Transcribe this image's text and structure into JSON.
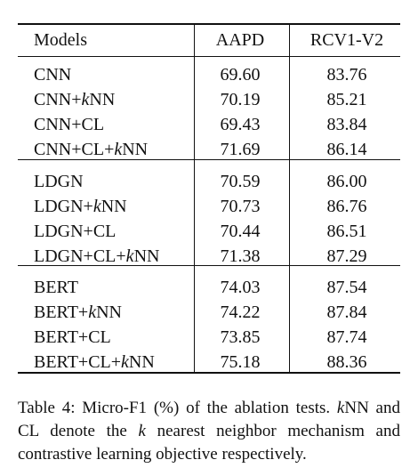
{
  "table": {
    "headers": [
      "Models",
      "AAPD",
      "RCV1-V2"
    ],
    "groups": [
      {
        "rows": [
          {
            "model": "CNN",
            "aapd": "69.60",
            "rcv": "83.76"
          },
          {
            "model": "CNN+kNN",
            "aapd": "70.19",
            "rcv": "85.21"
          },
          {
            "model": "CNN+CL",
            "aapd": "69.43",
            "rcv": "83.84"
          },
          {
            "model": "CNN+CL+kNN",
            "aapd": "71.69",
            "rcv": "86.14"
          }
        ]
      },
      {
        "rows": [
          {
            "model": "LDGN",
            "aapd": "70.59",
            "rcv": "86.00"
          },
          {
            "model": "LDGN+kNN",
            "aapd": "70.73",
            "rcv": "86.76"
          },
          {
            "model": "LDGN+CL",
            "aapd": "70.44",
            "rcv": "86.51"
          },
          {
            "model": "LDGN+CL+kNN",
            "aapd": "71.38",
            "rcv": "87.29"
          }
        ]
      },
      {
        "rows": [
          {
            "model": "BERT",
            "aapd": "74.03",
            "rcv": "87.54"
          },
          {
            "model": "BERT+kNN",
            "aapd": "74.22",
            "rcv": "87.84"
          },
          {
            "model": "BERT+CL",
            "aapd": "73.85",
            "rcv": "87.74"
          },
          {
            "model": "BERT+CL+kNN",
            "aapd": "75.18",
            "rcv": "88.36"
          }
        ]
      }
    ]
  },
  "caption": {
    "label": "Table 4:",
    "text": "Micro-F1 (%) of the ablation tests. kNN and CL denote the k nearest neighbor mechanism and contrastive learning objective respectively."
  }
}
